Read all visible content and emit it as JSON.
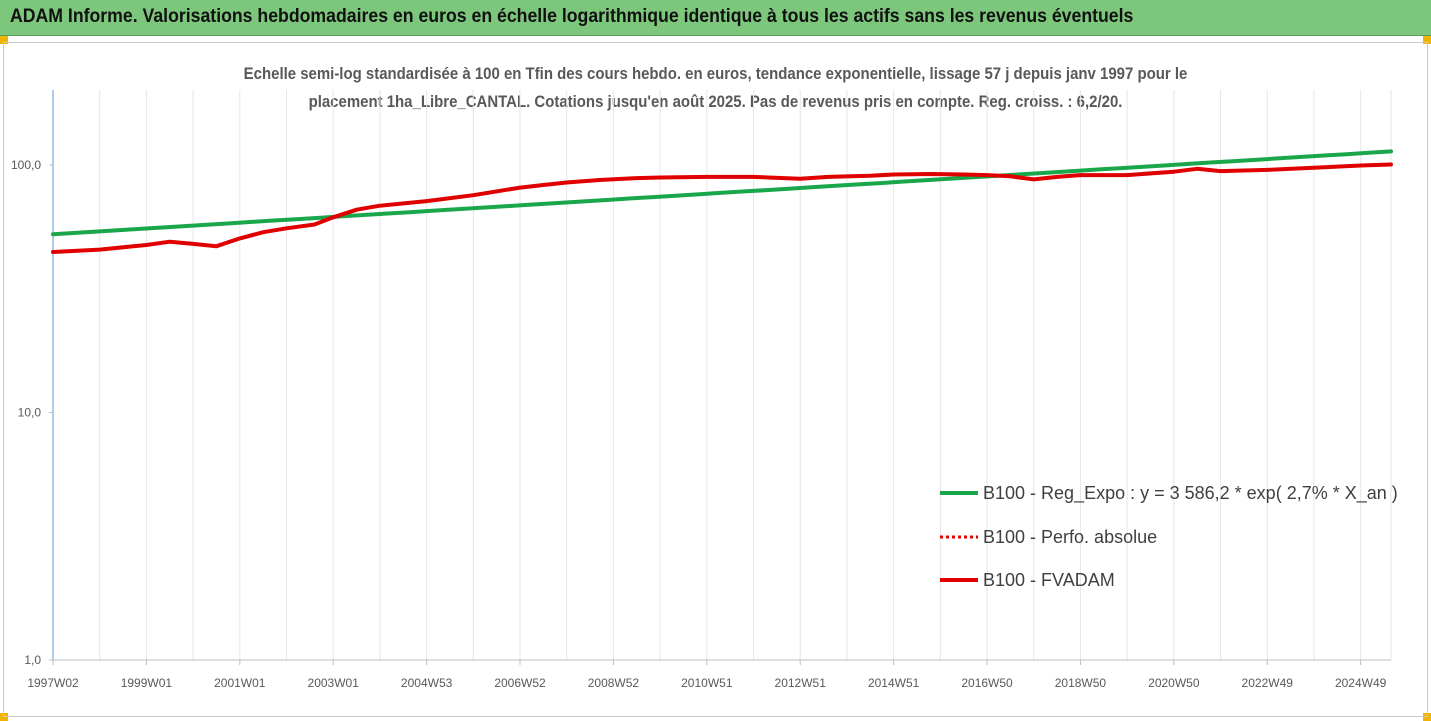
{
  "banner": {
    "title": "ADAM Informe. Valorisations hebdomadaires en euros en échelle logarithmique identique à tous les actifs sans les revenus éventuels"
  },
  "chart_data": {
    "type": "line",
    "title_line1": "Echelle semi-log standardisée à 100 en Tfin des cours hebdo. en euros, tendance exponentielle, lissage 57 j depuis janv 1997 pour le",
    "title_line2": "placement 1ha_Libre_CANTAL. Cotations jusqu'en août 2025. Pas de revenus pris en compte. Reg. croiss. : 6,2/20.",
    "y_scale": "log",
    "ylim": [
      1,
      200
    ],
    "y_ticks": [
      {
        "value": 1,
        "label": "1,0"
      },
      {
        "value": 10,
        "label": "10,0"
      },
      {
        "value": 100,
        "label": "100,0"
      }
    ],
    "x_range": [
      1997.0,
      2025.65
    ],
    "x_ticks": [
      {
        "x": 1997.0,
        "label": "1997W02"
      },
      {
        "x": 1999.0,
        "label": "1999W01"
      },
      {
        "x": 2001.0,
        "label": "2001W01"
      },
      {
        "x": 2003.0,
        "label": "2003W01"
      },
      {
        "x": 2005.0,
        "label": "2004W53"
      },
      {
        "x": 2007.0,
        "label": "2006W52"
      },
      {
        "x": 2009.0,
        "label": "2008W52"
      },
      {
        "x": 2011.0,
        "label": "2010W51"
      },
      {
        "x": 2013.0,
        "label": "2012W51"
      },
      {
        "x": 2015.0,
        "label": "2014W51"
      },
      {
        "x": 2017.0,
        "label": "2016W50"
      },
      {
        "x": 2019.0,
        "label": "2018W50"
      },
      {
        "x": 2021.0,
        "label": "2020W50"
      },
      {
        "x": 2023.0,
        "label": "2022W49"
      },
      {
        "x": 2025.0,
        "label": "2024W49"
      }
    ],
    "grid": "vertical",
    "legend_position": "bottom-right",
    "series": [
      {
        "name": "B100 - Reg_Expo : y = 3 586,2 * exp( 2,7% *  X_an )",
        "color": "#1aa64a",
        "style": "solid",
        "x": [
          1997.0,
          2025.65
        ],
        "y": [
          52.5,
          113.5
        ]
      },
      {
        "name": "B100 - Perfo. absolue",
        "color": "#e00000",
        "style": "dotted",
        "x": [],
        "y": []
      },
      {
        "name": "B100 - FVADAM",
        "color": "#e00000",
        "style": "solid",
        "x": [
          1997.0,
          1998.0,
          1999.0,
          1999.5,
          2000.0,
          2000.5,
          2001.0,
          2001.5,
          2002.0,
          2002.6,
          2003.0,
          2003.5,
          2004.0,
          2005.0,
          2006.0,
          2007.0,
          2007.5,
          2008.0,
          2008.7,
          2009.5,
          2010.0,
          2011.0,
          2012.0,
          2013.0,
          2013.6,
          2014.5,
          2015.0,
          2015.8,
          2016.5,
          2017.0,
          2017.5,
          2018.0,
          2018.5,
          2019.0,
          2020.0,
          2021.0,
          2021.5,
          2022.0,
          2023.0,
          2024.0,
          2025.0,
          2025.65
        ],
        "y": [
          44.5,
          45.5,
          47.5,
          49.0,
          48.0,
          47.0,
          50.5,
          53.5,
          55.5,
          57.5,
          61.5,
          66.0,
          68.5,
          71.5,
          75.5,
          81.0,
          83.0,
          85.0,
          87.0,
          88.5,
          89.0,
          89.5,
          89.5,
          88.0,
          89.5,
          90.5,
          91.5,
          92.0,
          91.5,
          91.0,
          90.0,
          87.5,
          89.5,
          91.0,
          91.0,
          94.0,
          96.5,
          94.5,
          95.5,
          97.5,
          99.5,
          100.5
        ]
      }
    ]
  }
}
